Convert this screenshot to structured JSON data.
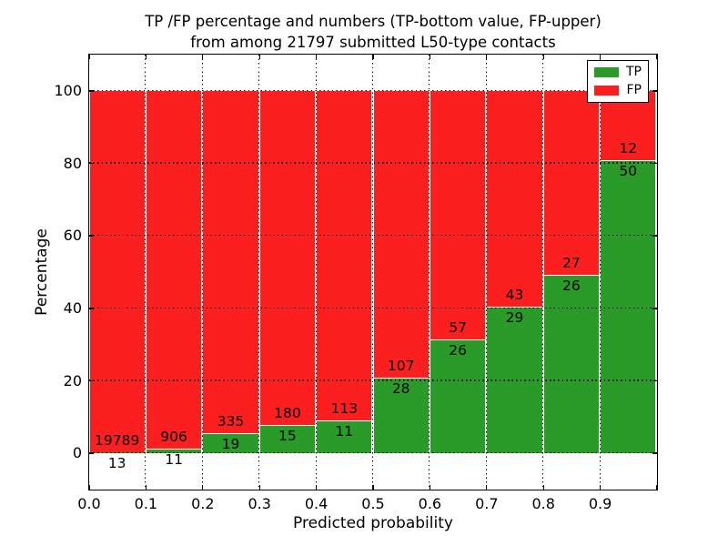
{
  "figure": {
    "title_line1": "TP /FP percentage and numbers (TP-bottom value, FP-upper)",
    "title_line2": "from among 21797 submitted L50-type contacts"
  },
  "chart_data": {
    "type": "bar",
    "subtype": "stacked-percentage-histogram",
    "title": "TP /FP percentage and numbers (TP-bottom value, FP-upper) from among 21797 submitted L50-type contacts",
    "xlabel": "Predicted probability",
    "ylabel": "Percentage",
    "xlim": [
      0.0,
      1.0
    ],
    "ylim": [
      -10,
      110
    ],
    "bin_width": 0.1,
    "x_tick_labels": [
      "0.0",
      "0.1",
      "0.2",
      "0.3",
      "0.4",
      "0.5",
      "0.6",
      "0.7",
      "0.8",
      "0.9"
    ],
    "y_tick_values": [
      0,
      20,
      40,
      60,
      80,
      100
    ],
    "grid": "dotted, both axes, drawn over bars",
    "legend_position": "upper-right",
    "total_contacts": 21797,
    "categories": [
      "0.0-0.1",
      "0.1-0.2",
      "0.2-0.3",
      "0.3-0.4",
      "0.4-0.5",
      "0.5-0.6",
      "0.6-0.7",
      "0.7-0.8",
      "0.8-0.9",
      "0.9-1.0"
    ],
    "series": [
      {
        "name": "TP",
        "color": "#2a9a28",
        "counts": [
          13,
          11,
          19,
          15,
          11,
          28,
          26,
          29,
          26,
          50
        ]
      },
      {
        "name": "FP",
        "color": "#fb1f1f",
        "counts": [
          19789,
          906,
          335,
          180,
          113,
          107,
          57,
          43,
          27,
          12
        ]
      }
    ],
    "tp_percent_of_bin": [
      0.07,
      1.2,
      5.37,
      7.69,
      8.87,
      20.74,
      31.33,
      40.28,
      49.06,
      80.65
    ]
  },
  "legend": {
    "entries": [
      {
        "label": "TP",
        "color": "#2a9a28"
      },
      {
        "label": "FP",
        "color": "#fb1f1f"
      }
    ]
  },
  "colors": {
    "background": "#ffffff",
    "text": "#000000",
    "spine": "#000000",
    "tp_green": "#2a9a28",
    "fp_red": "#fb1f1f",
    "bar_edge": "#ffffff"
  }
}
